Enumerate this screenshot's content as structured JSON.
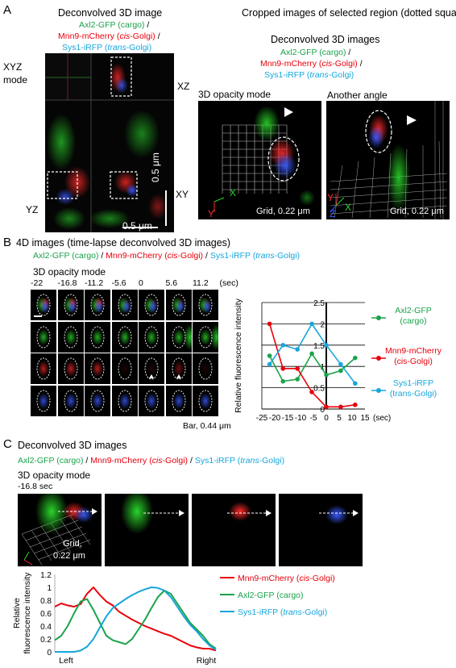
{
  "panel_a": {
    "letter": "A",
    "left_title": "Deconvolved 3D image",
    "legend_left": {
      "cargo": "Axl2-GFP (cargo)",
      "slash": " /",
      "cis_prefix": "Mnn9-mCherry (",
      "cis_italic": "cis",
      "cis_suffix": "-Golgi) /",
      "trans_prefix": "Sys1-iRFP (",
      "trans_italic": "trans",
      "trans_suffix": "-Golgi)"
    },
    "xyz_mode": "XYZ\nmode",
    "axis_xz": "XZ",
    "axis_yz": "YZ",
    "axis_xy": "XY",
    "scale_bar_h": "0.5 μm",
    "scale_bar_v": "0.5 μm",
    "right_title": "Cropped images of selected region (dotted square)",
    "right_sub": "Deconvolved 3D images",
    "legend_right": {
      "cargo": "Axl2-GFP (cargo)",
      "slash": " /",
      "cis_prefix": "Mnn9-mCherry (",
      "cis_italic": "cis",
      "cis_suffix": "-Golgi) /",
      "trans_prefix": "Sys1-iRFP (",
      "trans_italic": "trans",
      "trans_suffix": "-Golgi)"
    },
    "opacity_label": "3D opacity mode",
    "another_angle": "Another angle",
    "grid_label": "Grid, 0.22 μm",
    "axis_x": "X",
    "axis_y": "Y",
    "axis_z": "Z"
  },
  "panel_b": {
    "letter": "B",
    "title": "4D images (time-lapse deconvolved 3D images)",
    "legend": {
      "cargo": "Axl2-GFP (cargo)",
      "sep1": " / ",
      "cis_prefix": "Mnn9-mCherry (",
      "cis_italic": "cis",
      "cis_suffix": "-Golgi)",
      "sep2": " / ",
      "trans_prefix": "Sys1-iRFP (",
      "trans_italic": "trans",
      "trans_suffix": "-Golgi)"
    },
    "opacity_label": "3D opacity mode",
    "times": [
      "-22",
      "-16.8",
      "-11.2",
      "-5.6",
      "0",
      "5.6",
      "11.2"
    ],
    "time_unit": "(sec)",
    "bar_label": "Bar, 0.44 μm"
  },
  "panel_c": {
    "letter": "C",
    "title": "Deconvolved 3D images",
    "legend": {
      "cargo": "Axl2-GFP (cargo)",
      "sep1": " / ",
      "cis_prefix": "Mnn9-mCherry (",
      "cis_italic": "cis",
      "cis_suffix": "-Golgi)",
      "sep2": " / ",
      "trans_prefix": "Sys1-iRFP (",
      "trans_italic": "trans",
      "trans_suffix": "-Golgi)"
    },
    "opacity_label": "3D opacity mode",
    "time_label": "-16.8 sec",
    "grid_label": "Grid,",
    "grid_value": "0.22 μm"
  },
  "colors": {
    "green": "#1aa34a",
    "red": "#e8000b",
    "cyan": "#16a6dc"
  },
  "chart_data": [
    {
      "type": "line",
      "title": "",
      "xlabel": "(sec)",
      "ylabel": "Relative fluorescence intensity",
      "xlim": [
        -25,
        15
      ],
      "ylim": [
        0,
        2.5
      ],
      "xticks": [
        -25,
        -20,
        -15,
        -10,
        -5,
        0,
        5,
        10,
        15
      ],
      "yticks": [
        0,
        0.5,
        1,
        1.5,
        2,
        2.5
      ],
      "grid": true,
      "legend_position": "right",
      "series": [
        {
          "name": "Axl2-GFP (cargo)",
          "legend_lines": [
            "Axl2-GFP",
            "(cargo)"
          ],
          "color": "#1aa34a",
          "x": [
            -22,
            -16.8,
            -11.2,
            -5.6,
            0,
            5.6,
            11.2
          ],
          "y": [
            1.25,
            0.65,
            0.7,
            1.3,
            0.8,
            0.9,
            1.2
          ]
        },
        {
          "name": "Mnn9-mCherry (cis-Golgi)",
          "legend_lines": [
            "Mnn9-mCherry",
            "(cis-Golgi)"
          ],
          "color": "#e8000b",
          "x": [
            -22,
            -16.8,
            -11.2,
            -5.6,
            0,
            5.6,
            11.2
          ],
          "y": [
            2.0,
            0.95,
            0.95,
            0.4,
            0.05,
            0.05,
            0.1
          ]
        },
        {
          "name": "Sys1-iRFP (trans-Golgi)",
          "legend_lines": [
            "Sys1-iRFP",
            "(trans-Golgi)"
          ],
          "color": "#16a6dc",
          "x": [
            -22,
            -16.8,
            -11.2,
            -5.6,
            0,
            5.6,
            11.2
          ],
          "y": [
            1.05,
            1.5,
            1.4,
            2.0,
            1.5,
            1.05,
            0.6
          ]
        }
      ]
    },
    {
      "type": "line",
      "title": "",
      "xlabel": "",
      "ylabel": "Relative fluorescence intensity",
      "ylim": [
        0,
        1.2
      ],
      "yticks": [
        0,
        0.2,
        0.4,
        0.6,
        0.8,
        1,
        1.2
      ],
      "x_labels": [
        "Left",
        "Right"
      ],
      "grid": false,
      "legend_position": "right",
      "series": [
        {
          "name": "Mnn9-mCherry (cis-Golgi)",
          "color": "#e8000b",
          "x": [
            0,
            0.04,
            0.08,
            0.12,
            0.16,
            0.2,
            0.24,
            0.28,
            0.32,
            0.36,
            0.4,
            0.44,
            0.48,
            0.52,
            0.56,
            0.6,
            0.64,
            0.68,
            0.72,
            0.76,
            0.8,
            0.84,
            0.88,
            0.92,
            0.96,
            1
          ],
          "y": [
            0.7,
            0.75,
            0.72,
            0.7,
            0.74,
            0.9,
            1.0,
            0.88,
            0.78,
            0.72,
            0.62,
            0.56,
            0.5,
            0.45,
            0.4,
            0.36,
            0.32,
            0.28,
            0.25,
            0.2,
            0.15,
            0.1,
            0.07,
            0.05,
            0.05,
            0.02
          ]
        },
        {
          "name": "Axl2-GFP (cargo)",
          "color": "#1aa34a",
          "x": [
            0,
            0.04,
            0.08,
            0.12,
            0.16,
            0.2,
            0.24,
            0.28,
            0.32,
            0.36,
            0.4,
            0.44,
            0.48,
            0.52,
            0.56,
            0.6,
            0.64,
            0.68,
            0.72,
            0.76,
            0.8,
            0.84,
            0.88,
            0.92,
            0.96,
            1
          ],
          "y": [
            0.18,
            0.25,
            0.4,
            0.6,
            0.78,
            0.82,
            0.65,
            0.45,
            0.25,
            0.18,
            0.15,
            0.12,
            0.2,
            0.35,
            0.5,
            0.68,
            0.85,
            0.95,
            0.9,
            0.75,
            0.6,
            0.45,
            0.35,
            0.25,
            0.12,
            0.05
          ]
        },
        {
          "name": "Sys1-iRFP (trans-Golgi)",
          "color": "#16a6dc",
          "x": [
            0,
            0.04,
            0.08,
            0.12,
            0.16,
            0.2,
            0.24,
            0.28,
            0.32,
            0.36,
            0.4,
            0.44,
            0.48,
            0.52,
            0.56,
            0.6,
            0.64,
            0.68,
            0.72,
            0.76,
            0.8,
            0.84,
            0.88,
            0.92,
            0.96,
            1
          ],
          "y": [
            0,
            0,
            0,
            0,
            0.02,
            0.08,
            0.2,
            0.38,
            0.55,
            0.68,
            0.75,
            0.82,
            0.88,
            0.93,
            0.97,
            1.0,
            0.99,
            0.95,
            0.85,
            0.7,
            0.55,
            0.42,
            0.32,
            0.2,
            0.1,
            0.03
          ]
        }
      ]
    }
  ]
}
